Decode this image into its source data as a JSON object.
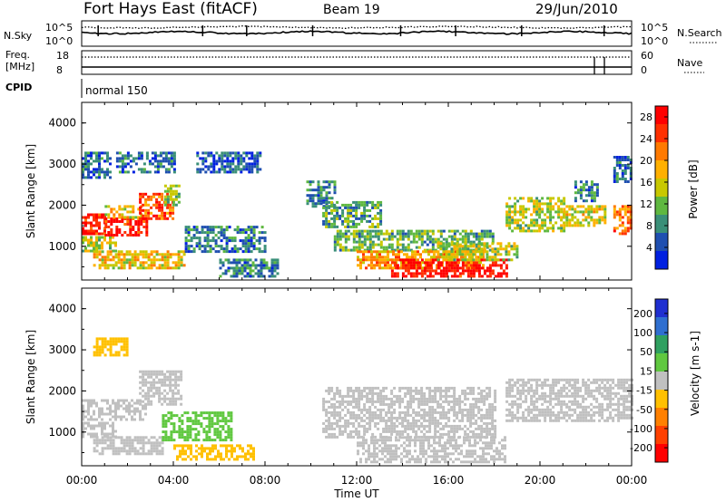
{
  "header": {
    "station": "Fort Hays East (fitACF)",
    "beam": "Beam 19",
    "date": "29/Jun/2010"
  },
  "noise_panel": {
    "left_label": "N.Sky",
    "right_label": "N.Search",
    "left_ticks": [
      "10^5",
      "10^0"
    ],
    "right_ticks": [
      "10^5",
      "10^0"
    ]
  },
  "freq_panel": {
    "left_label_1": "Freq.",
    "left_label_2": "[MHz]",
    "right_label": "Nave",
    "left_ticks": [
      "18",
      "8"
    ],
    "right_ticks": [
      "60",
      "0"
    ]
  },
  "cpid_panel": {
    "label": "CPID",
    "value": "normal 150"
  },
  "chart_data": [
    {
      "type": "heatmap",
      "name": "power",
      "ylabel": "Slant Range [km]",
      "xlabel": "",
      "yticks": [
        "1000",
        "2000",
        "3000",
        "4000"
      ],
      "ylim": [
        180,
        4500
      ],
      "xlim": [
        0,
        24
      ],
      "colorbar_label": "Power [dB]",
      "colorbar_ticks": [
        "4",
        "8",
        "12",
        "16",
        "20",
        "24",
        "28"
      ],
      "colorbar_range": [
        0,
        30
      ],
      "colors": [
        "#0020e0",
        "#1f4fb0",
        "#3a8f78",
        "#5fb840",
        "#c8c800",
        "#ffb000",
        "#ff7a00",
        "#ff3000",
        "#ff0000"
      ],
      "bands": [
        {
          "t0": 0.0,
          "t1": 1.0,
          "r0": 1300,
          "r1": 1800,
          "level": 27
        },
        {
          "t0": 0.0,
          "t1": 1.5,
          "r0": 900,
          "r1": 1250,
          "level": 14
        },
        {
          "t0": 0.0,
          "t1": 1.2,
          "r0": 2700,
          "r1": 3300,
          "level": 6
        },
        {
          "t0": 1.0,
          "t1": 2.8,
          "r0": 1300,
          "r1": 1700,
          "level": 27
        },
        {
          "t0": 1.0,
          "t1": 2.6,
          "r0": 1700,
          "r1": 2000,
          "level": 17
        },
        {
          "t0": 2.5,
          "t1": 4.0,
          "r0": 1700,
          "r1": 2300,
          "level": 24
        },
        {
          "t0": 0.5,
          "t1": 4.5,
          "r0": 500,
          "r1": 900,
          "level": 17
        },
        {
          "t0": 1.5,
          "t1": 4.0,
          "r0": 2800,
          "r1": 3300,
          "level": 6
        },
        {
          "t0": 3.6,
          "t1": 4.3,
          "r0": 2000,
          "r1": 2500,
          "level": 12
        },
        {
          "t0": 4.5,
          "t1": 8.0,
          "r0": 900,
          "r1": 1500,
          "level": 7
        },
        {
          "t0": 5.0,
          "t1": 7.8,
          "r0": 2800,
          "r1": 3300,
          "level": 5
        },
        {
          "t0": 6.0,
          "t1": 8.5,
          "r0": 300,
          "r1": 700,
          "level": 8
        },
        {
          "t0": 9.8,
          "t1": 11.0,
          "r0": 2000,
          "r1": 2600,
          "level": 8
        },
        {
          "t0": 10.5,
          "t1": 13.0,
          "r0": 1500,
          "r1": 2100,
          "level": 10
        },
        {
          "t0": 11.0,
          "t1": 18.0,
          "r0": 900,
          "r1": 1400,
          "level": 11
        },
        {
          "t0": 12.0,
          "t1": 17.5,
          "r0": 500,
          "r1": 900,
          "level": 20
        },
        {
          "t0": 13.5,
          "t1": 18.5,
          "r0": 250,
          "r1": 700,
          "level": 28
        },
        {
          "t0": 15.5,
          "t1": 19.0,
          "r0": 700,
          "r1": 1100,
          "level": 14
        },
        {
          "t0": 18.5,
          "t1": 21.0,
          "r0": 1400,
          "r1": 2200,
          "level": 14
        },
        {
          "t0": 21.0,
          "t1": 22.8,
          "r0": 1500,
          "r1": 2000,
          "level": 16
        },
        {
          "t0": 21.5,
          "t1": 22.5,
          "r0": 2100,
          "r1": 2600,
          "level": 8
        },
        {
          "t0": 23.2,
          "t1": 24.0,
          "r0": 1300,
          "r1": 2000,
          "level": 22
        },
        {
          "t0": 23.2,
          "t1": 24.0,
          "r0": 2600,
          "r1": 3200,
          "level": 6
        }
      ]
    },
    {
      "type": "heatmap",
      "name": "velocity",
      "ylabel": "Slant Range [km]",
      "xlabel": "Time UT",
      "xticks": [
        "00:00",
        "04:00",
        "08:00",
        "12:00",
        "16:00",
        "20:00",
        "00:00"
      ],
      "yticks": [
        "1000",
        "2000",
        "3000",
        "4000"
      ],
      "ylim": [
        180,
        4500
      ],
      "xlim": [
        0,
        24
      ],
      "colorbar_label": "Velocity [m s-1]",
      "colorbar_ticks": [
        "200",
        "100",
        "50",
        "15",
        "-15",
        "-50",
        "-100",
        "-200"
      ],
      "colorbar_range": [
        -250,
        250
      ],
      "colors": [
        "#1f2fd0",
        "#2f6fd0",
        "#2fa060",
        "#60c840",
        "#c0c0c0",
        "#ffc000",
        "#ff8000",
        "#ff4000",
        "#ff0000"
      ],
      "bands": [
        {
          "t0": 0.0,
          "t1": 2.8,
          "r0": 1300,
          "r1": 1800,
          "level": 0
        },
        {
          "t0": 0.0,
          "t1": 1.5,
          "r0": 900,
          "r1": 1250,
          "level": 0
        },
        {
          "t0": 2.5,
          "t1": 4.3,
          "r0": 1700,
          "r1": 2500,
          "level": 0
        },
        {
          "t0": 0.5,
          "t1": 3.5,
          "r0": 500,
          "r1": 900,
          "level": 0
        },
        {
          "t0": 3.5,
          "t1": 6.5,
          "r0": 800,
          "r1": 1500,
          "level": 60
        },
        {
          "t0": 4.0,
          "t1": 7.5,
          "r0": 350,
          "r1": 700,
          "level": -60
        },
        {
          "t0": 0.5,
          "t1": 2.0,
          "r0": 2900,
          "r1": 3300,
          "level": -60
        },
        {
          "t0": 10.5,
          "t1": 18.0,
          "r0": 900,
          "r1": 2100,
          "level": 0
        },
        {
          "t0": 12.0,
          "t1": 18.5,
          "r0": 250,
          "r1": 900,
          "level": 0
        },
        {
          "t0": 18.5,
          "t1": 24.0,
          "r0": 1300,
          "r1": 2300,
          "level": 0
        }
      ]
    }
  ]
}
